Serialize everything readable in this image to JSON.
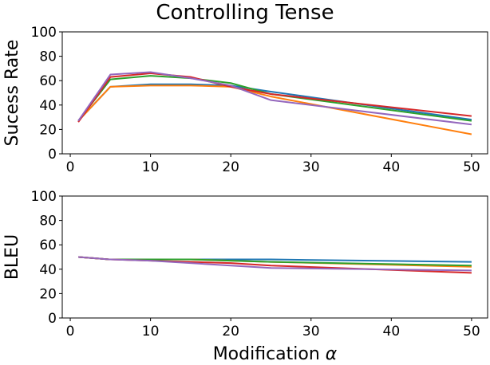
{
  "figure_title": "Controlling Tense",
  "chart_data": [
    {
      "type": "line",
      "ylabel": "Sucess Rate",
      "xlabel": "",
      "xlim": [
        -1,
        52
      ],
      "ylim": [
        0,
        100
      ],
      "xticks": [
        0,
        10,
        20,
        30,
        40,
        50
      ],
      "yticks": [
        0,
        20,
        40,
        60,
        80,
        100
      ],
      "x": [
        1,
        5,
        10,
        15,
        20,
        25,
        50
      ],
      "grid": false,
      "series": [
        {
          "color": "#1f77b4",
          "values": [
            27,
            55,
            57,
            57,
            56,
            51,
            28
          ]
        },
        {
          "color": "#ff7f0e",
          "values": [
            27,
            55,
            56,
            56,
            55,
            47,
            16
          ]
        },
        {
          "color": "#2ca02c",
          "values": [
            27,
            61,
            64,
            62,
            58,
            49,
            27
          ]
        },
        {
          "color": "#d62728",
          "values": [
            26,
            63,
            66,
            63,
            55,
            49,
            31
          ]
        },
        {
          "color": "#9467bd",
          "values": [
            27,
            65,
            67,
            62,
            56,
            44,
            24
          ]
        }
      ]
    },
    {
      "type": "line",
      "ylabel": "BLEU",
      "xlabel": "Modification α",
      "xlim": [
        -1,
        52
      ],
      "ylim": [
        0,
        100
      ],
      "xticks": [
        0,
        10,
        20,
        30,
        40,
        50
      ],
      "yticks": [
        0,
        20,
        40,
        60,
        80,
        100
      ],
      "x": [
        1,
        5,
        10,
        15,
        20,
        25,
        50
      ],
      "grid": false,
      "series": [
        {
          "color": "#1f77b4",
          "values": [
            50,
            48,
            48,
            48,
            48,
            48,
            46
          ]
        },
        {
          "color": "#ff7f0e",
          "values": [
            50,
            48,
            48,
            48,
            47,
            46,
            42
          ]
        },
        {
          "color": "#2ca02c",
          "values": [
            50,
            48,
            48,
            48,
            47,
            46,
            43
          ]
        },
        {
          "color": "#d62728",
          "values": [
            50,
            48,
            47,
            46,
            45,
            43,
            37
          ]
        },
        {
          "color": "#9467bd",
          "values": [
            50,
            48,
            47,
            45,
            43,
            41,
            39
          ]
        }
      ]
    }
  ]
}
